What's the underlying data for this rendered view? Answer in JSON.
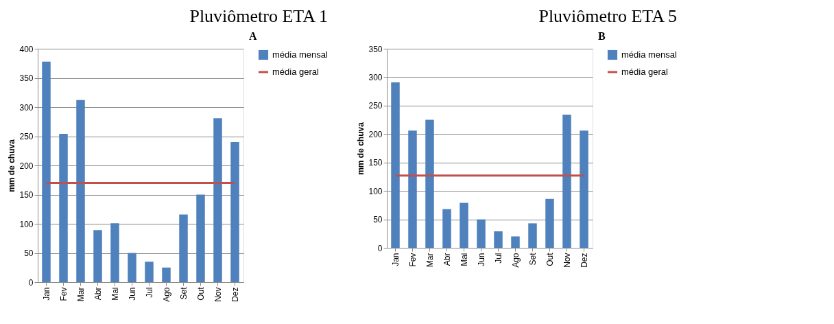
{
  "chart_data": [
    {
      "type": "bar",
      "title": "Pluviômetro ETA 1",
      "ylabel": "mm de chuva",
      "annotations": [
        "A"
      ],
      "categories": [
        "Jan",
        "Fev",
        "Mar",
        "Abr",
        "Mai",
        "Jun",
        "Jul",
        "Ago",
        "Set",
        "Out",
        "Nov",
        "Dez"
      ],
      "series": [
        {
          "name": "média mensal",
          "color": "#4f81bd",
          "values": [
            378,
            254,
            312,
            89,
            101,
            50,
            35,
            25,
            116,
            150,
            281,
            240
          ]
        },
        {
          "name": "média geral",
          "type": "line",
          "color": "#c0504d",
          "values": [
            170,
            170,
            170,
            170,
            170,
            170,
            170,
            170,
            170,
            170,
            170,
            170
          ]
        }
      ],
      "ylim": [
        0,
        400
      ],
      "yticks": [
        0,
        50,
        100,
        150,
        200,
        250,
        300,
        350,
        400
      ],
      "grid": "y",
      "legend": "right"
    },
    {
      "type": "bar",
      "title": "Pluviômetro ETA 5",
      "ylabel": "mm de chuva",
      "annotations": [
        "B"
      ],
      "categories": [
        "Jan",
        "Fev",
        "Mar",
        "Abr",
        "Mai",
        "Jun",
        "Jul",
        "Ago",
        "Set",
        "Out",
        "Nov",
        "Dez"
      ],
      "series": [
        {
          "name": "média mensal",
          "color": "#4f81bd",
          "values": [
            291,
            206,
            225,
            68,
            79,
            50,
            29,
            20,
            43,
            86,
            234,
            206
          ]
        },
        {
          "name": "média geral",
          "type": "line",
          "color": "#c0504d",
          "values": [
            127,
            127,
            127,
            127,
            127,
            127,
            127,
            127,
            127,
            127,
            127,
            127
          ]
        }
      ],
      "ylim": [
        0,
        350
      ],
      "yticks": [
        0,
        50,
        100,
        150,
        200,
        250,
        300,
        350
      ],
      "grid": "y",
      "legend": "right"
    }
  ]
}
